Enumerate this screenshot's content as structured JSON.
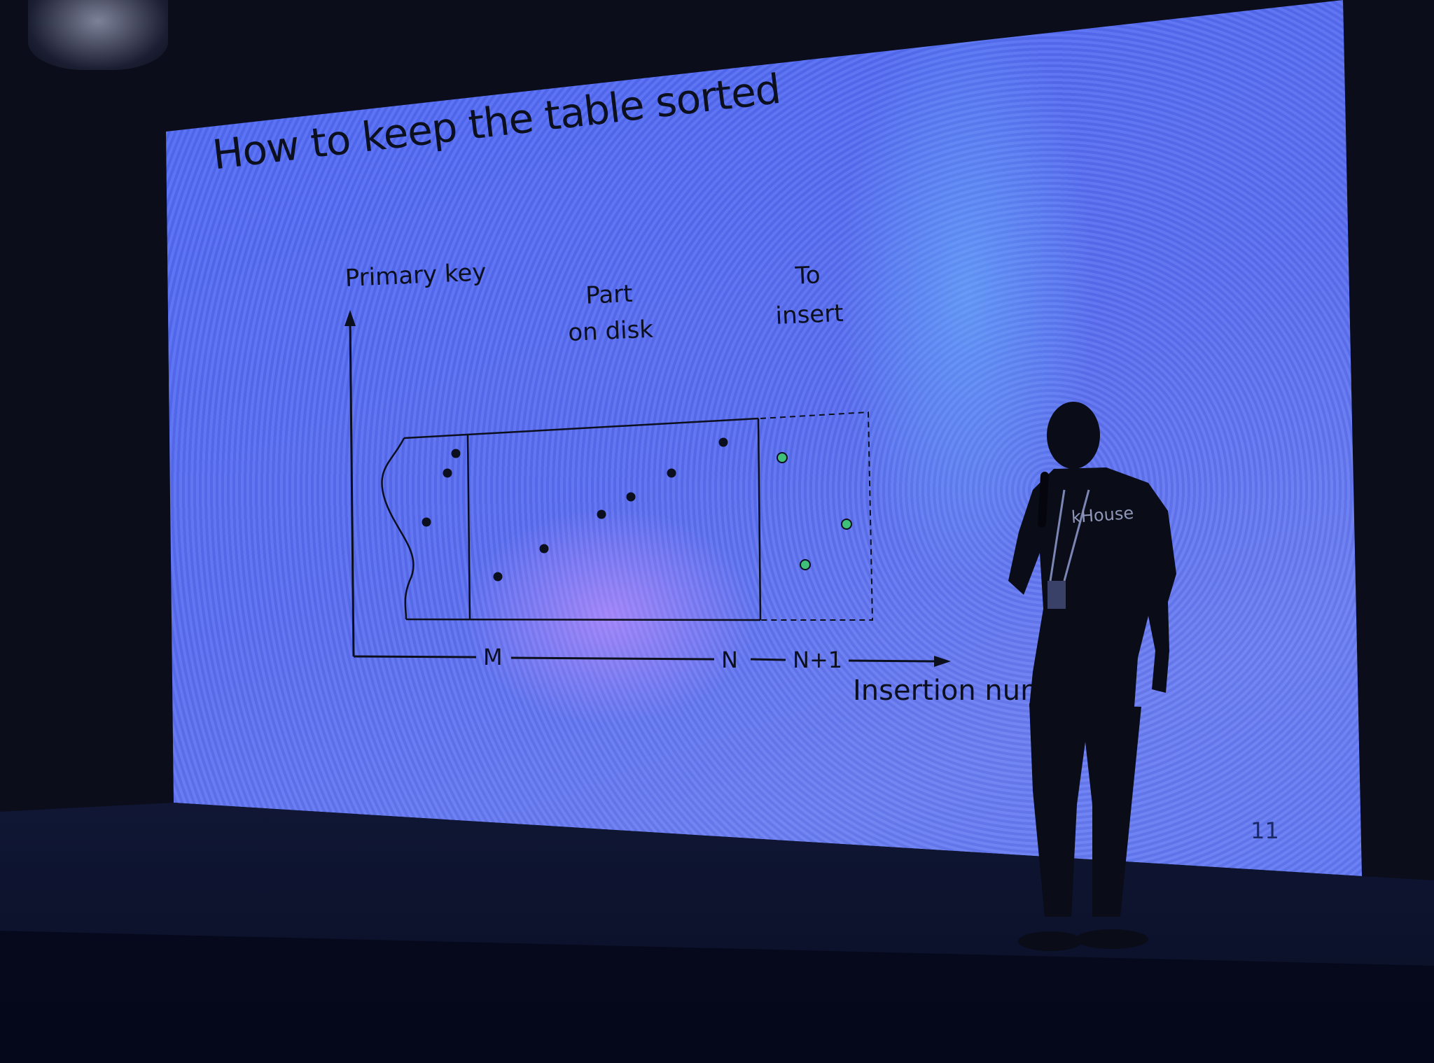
{
  "slide": {
    "title": "How to keep the table sorted",
    "y_axis_label": "Primary key",
    "part_label_line1": "Part",
    "part_label_line2": "on disk",
    "insert_label_line1": "To",
    "insert_label_line2": "insert",
    "tick_m": "M",
    "tick_n": "N",
    "tick_n1": "N+1",
    "x_axis_label": "Insertion num",
    "slide_number": "11"
  },
  "speaker": {
    "shirt_text": "kHouse"
  },
  "colors": {
    "screen": "#5a6ef0",
    "ink": "#0c0f1e",
    "new_point": "#3fbf7a"
  }
}
